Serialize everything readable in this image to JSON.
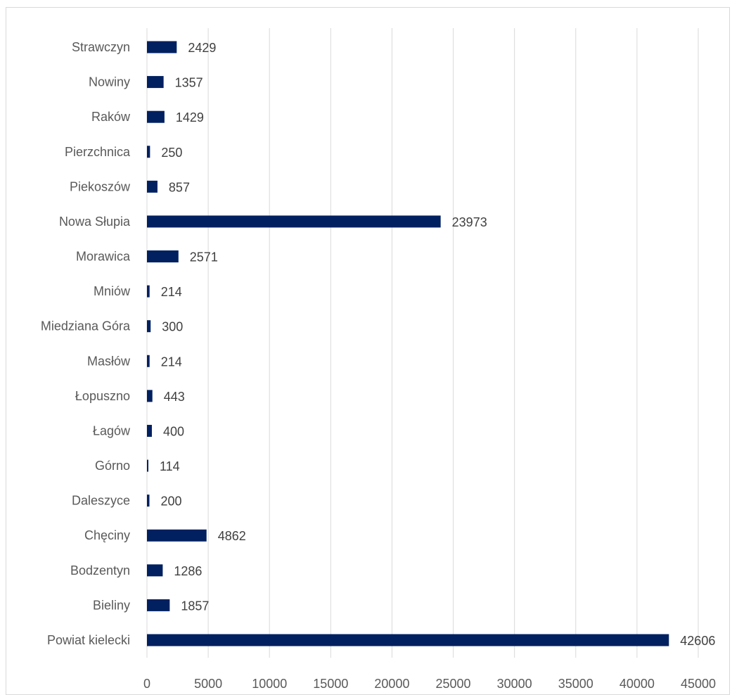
{
  "chart_data": {
    "type": "bar",
    "orientation": "horizontal",
    "categories": [
      "Strawczyn",
      "Nowiny",
      "Raków",
      "Pierzchnica",
      "Piekoszów",
      "Nowa Słupia",
      "Morawica",
      "Mniów",
      "Miedziana Góra",
      "Masłów",
      "Łopuszno",
      "Łagów",
      "Górno",
      "Daleszyce",
      "Chęciny",
      "Bodzentyn",
      "Bieliny",
      "Powiat kielecki"
    ],
    "values": [
      2429,
      1357,
      1429,
      250,
      857,
      23973,
      2571,
      214,
      300,
      214,
      443,
      400,
      114,
      200,
      4862,
      1286,
      1857,
      42606
    ],
    "data_labels": [
      "2429",
      "1357",
      "1429",
      "250",
      "857",
      "23973",
      "2571",
      "214",
      "300",
      "214",
      "443",
      "400",
      "114",
      "200",
      "4862",
      "1286",
      "1857",
      "42606"
    ],
    "xlim": [
      0,
      45000
    ],
    "x_ticks": [
      0,
      5000,
      10000,
      15000,
      20000,
      25000,
      30000,
      35000,
      40000,
      45000
    ],
    "x_tick_labels": [
      "0",
      "5000",
      "10000",
      "15000",
      "20000",
      "25000",
      "30000",
      "35000",
      "40000",
      "45000"
    ],
    "grid": "vertical",
    "legend": "none",
    "title": "",
    "xlabel": "",
    "ylabel": ""
  },
  "colors": {
    "bar": "#002060",
    "grid": "#d9d9d9",
    "axis": "#d9d9d9",
    "category_text": "#595959",
    "data_label_text": "#404040"
  }
}
